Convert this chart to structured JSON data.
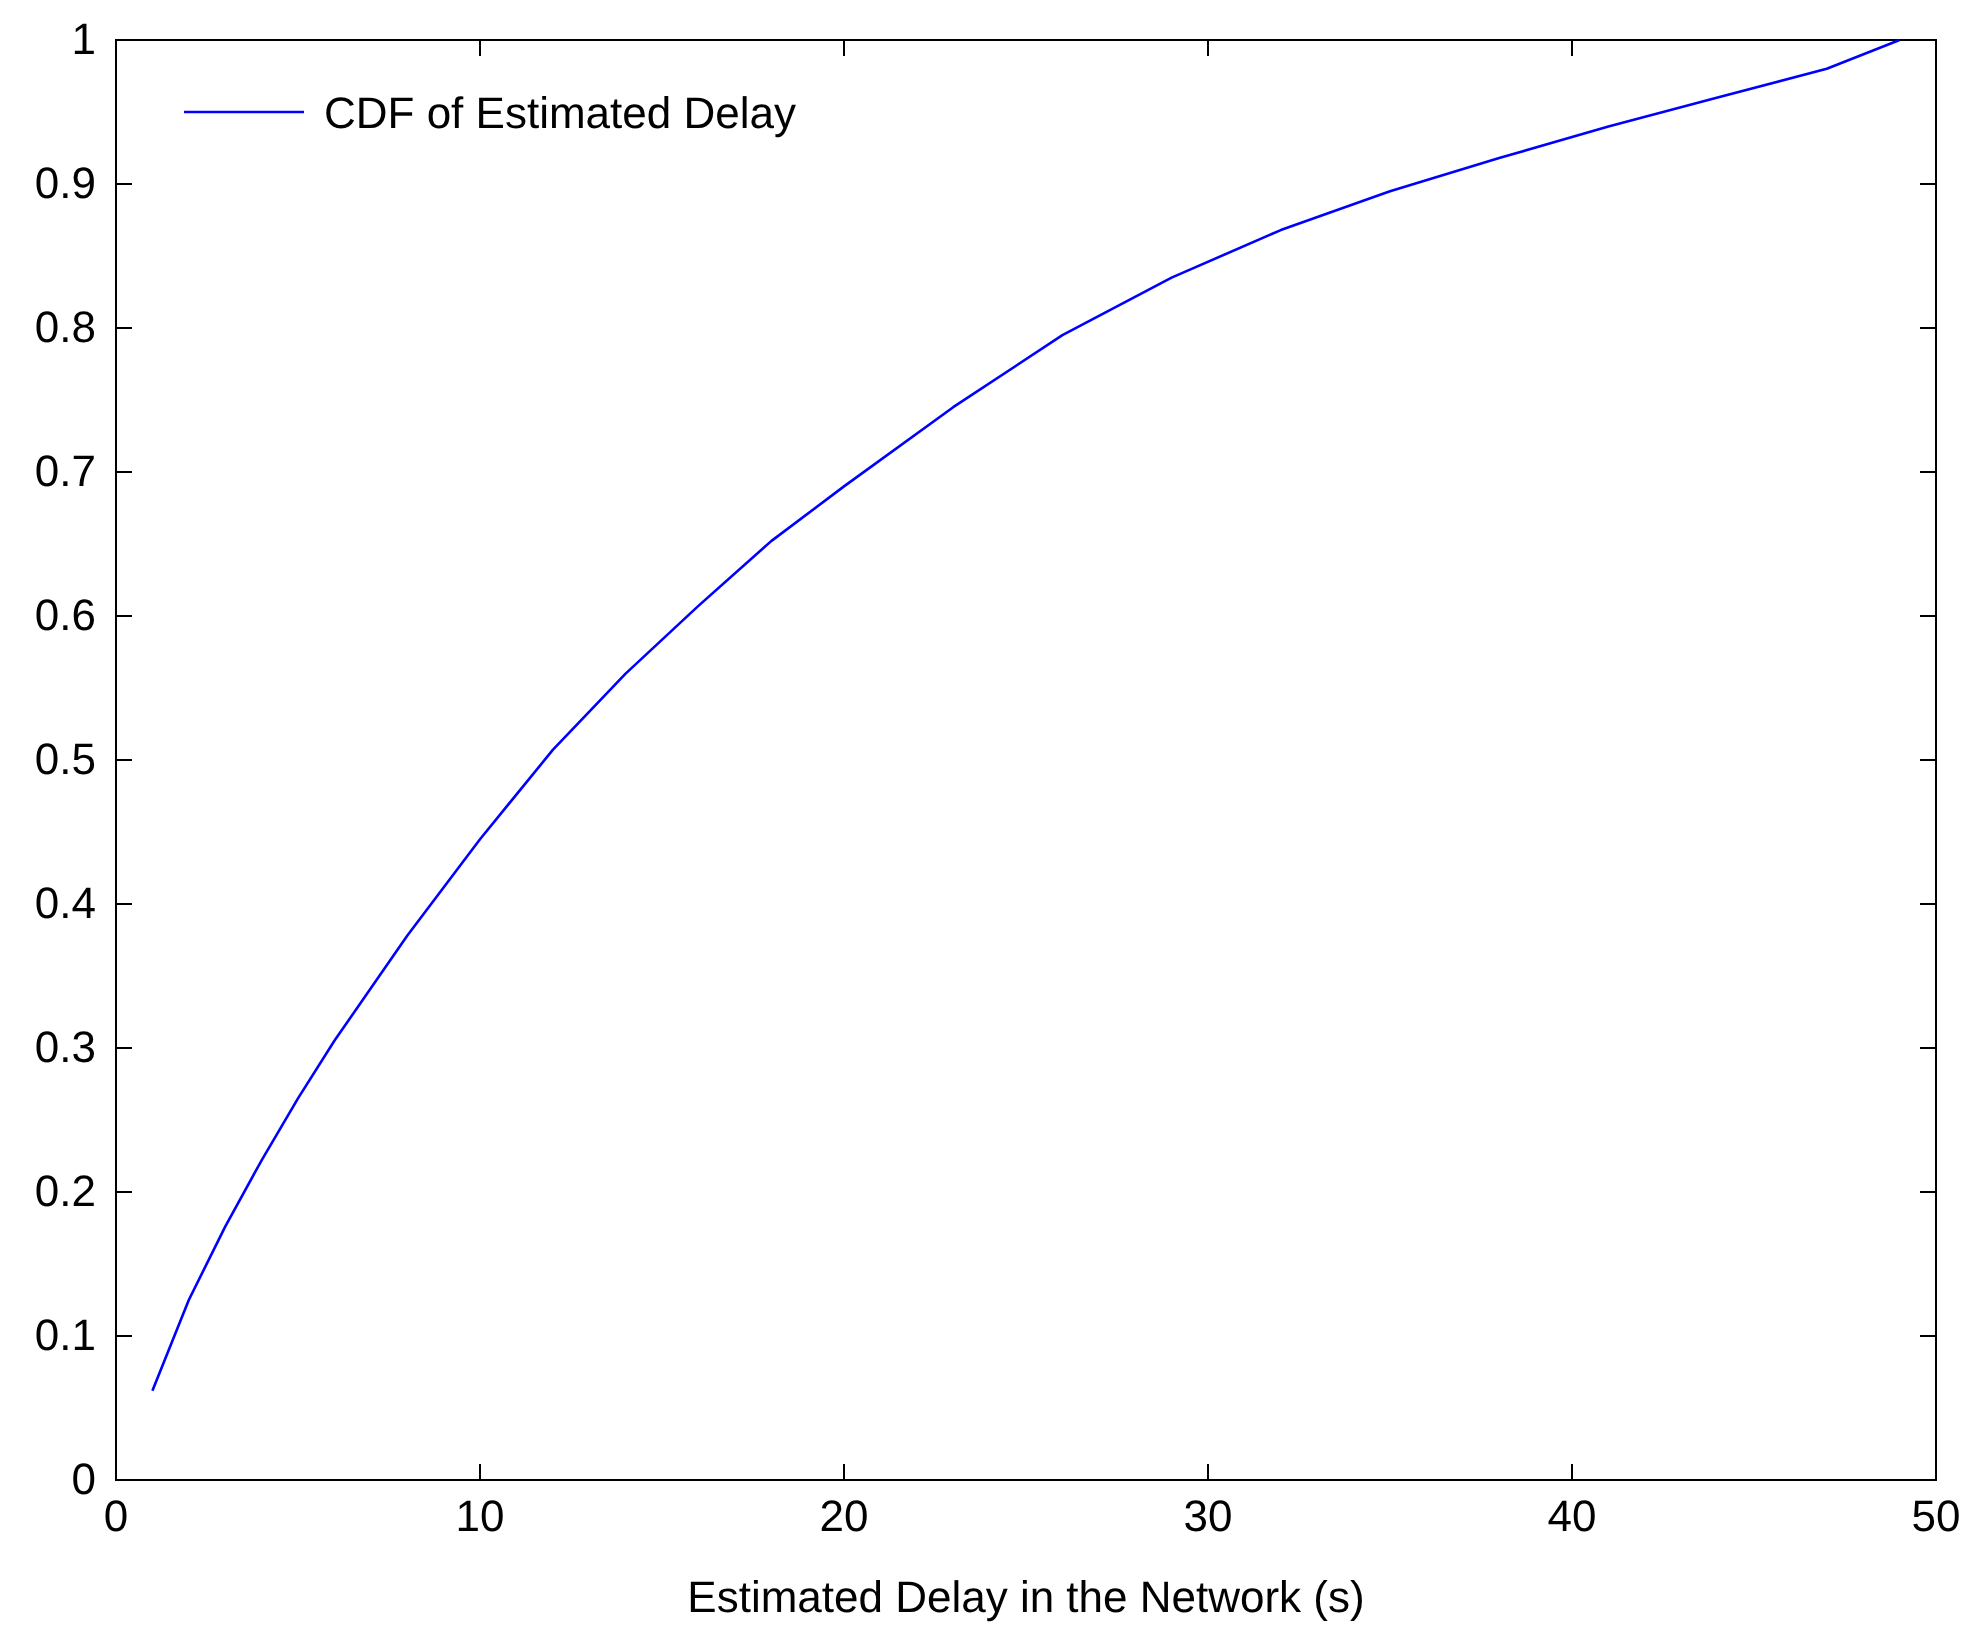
{
  "chart_data": {
    "type": "line",
    "xlabel": "Estimated Delay in the Network (s)",
    "xlim": [
      0,
      50
    ],
    "xticks": [
      0,
      10,
      20,
      30,
      40,
      50
    ],
    "ylim": [
      0,
      1
    ],
    "yticks": [
      0,
      0.1,
      0.2,
      0.3,
      0.4,
      0.5,
      0.6,
      0.7,
      0.8,
      0.9,
      1
    ],
    "grid": false,
    "legend": "top left",
    "series": [
      {
        "name": "CDF of Estimated Delay",
        "color": "#0000ff",
        "x": [
          1,
          2,
          3,
          4,
          5,
          6,
          8,
          10,
          12,
          14,
          16,
          18,
          20,
          23,
          26,
          29,
          32,
          35,
          38,
          41,
          44,
          47,
          49
        ],
        "values": [
          0.062,
          0.125,
          0.176,
          0.222,
          0.265,
          0.305,
          0.378,
          0.445,
          0.507,
          0.56,
          0.607,
          0.652,
          0.69,
          0.745,
          0.795,
          0.835,
          0.868,
          0.895,
          0.918,
          0.94,
          0.96,
          0.98,
          1.0
        ]
      }
    ]
  }
}
